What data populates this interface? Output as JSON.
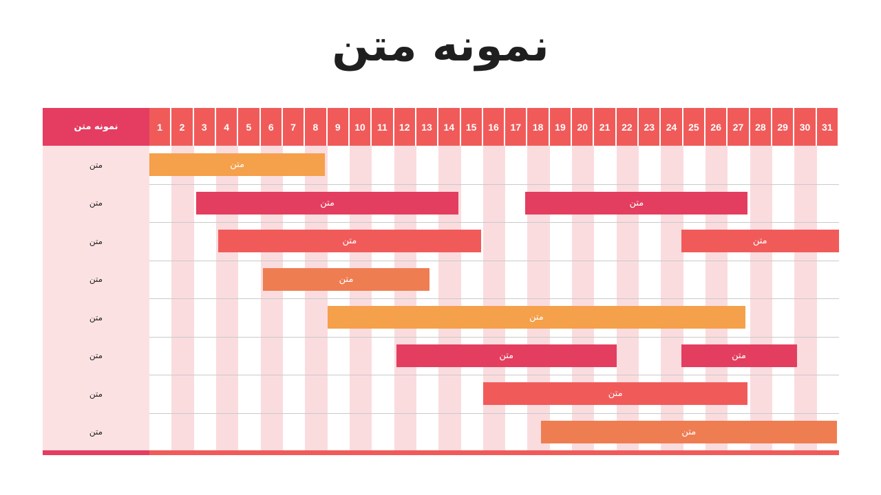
{
  "title": "نمونه متن",
  "gantt": {
    "header_label": "نمونه متن",
    "days": [
      "1",
      "2",
      "3",
      "4",
      "5",
      "6",
      "7",
      "8",
      "9",
      "10",
      "11",
      "12",
      "13",
      "14",
      "15",
      "16",
      "17",
      "18",
      "19",
      "20",
      "21",
      "22",
      "23",
      "24",
      "25",
      "26",
      "27",
      "28",
      "29",
      "30",
      "31"
    ],
    "colors": {
      "header": "#f05b5a",
      "header_corner": "#e53d61",
      "stripe": "#fadcdf",
      "label_bg": "#fce1e3",
      "amber": "#f5a04a",
      "crimson": "#e33e5f",
      "coral": "#f05b5a",
      "orange": "#ef7d52"
    },
    "rows": [
      {
        "label": "متن",
        "bars": [
          {
            "start": 1,
            "end": 7.9,
            "label": "متن",
            "color": "amber"
          }
        ]
      },
      {
        "label": "متن",
        "bars": [
          {
            "start": 3.1,
            "end": 13.9,
            "label": "متن",
            "color": "crimson"
          },
          {
            "start": 17.9,
            "end": 26.9,
            "label": "متن",
            "color": "crimson"
          }
        ]
      },
      {
        "label": "متن",
        "bars": [
          {
            "start": 4.1,
            "end": 14.9,
            "label": "متن",
            "color": "coral"
          },
          {
            "start": 24.9,
            "end": 31,
            "label": "متن",
            "color": "coral"
          }
        ]
      },
      {
        "label": "متن",
        "bars": [
          {
            "start": 6.1,
            "end": 12.6,
            "label": "متن",
            "color": "orange"
          }
        ]
      },
      {
        "label": "متن",
        "bars": [
          {
            "start": 9,
            "end": 26.8,
            "label": "متن",
            "color": "amber"
          }
        ]
      },
      {
        "label": "متن",
        "bars": [
          {
            "start": 12.1,
            "end": 21,
            "label": "متن",
            "color": "crimson"
          },
          {
            "start": 24.9,
            "end": 29.1,
            "label": "متن",
            "color": "crimson"
          }
        ]
      },
      {
        "label": "متن",
        "bars": [
          {
            "start": 16,
            "end": 26.9,
            "label": "متن",
            "color": "coral"
          }
        ]
      },
      {
        "label": "متن",
        "bars": [
          {
            "start": 18.6,
            "end": 30.9,
            "label": "متن",
            "color": "orange"
          }
        ]
      }
    ]
  }
}
